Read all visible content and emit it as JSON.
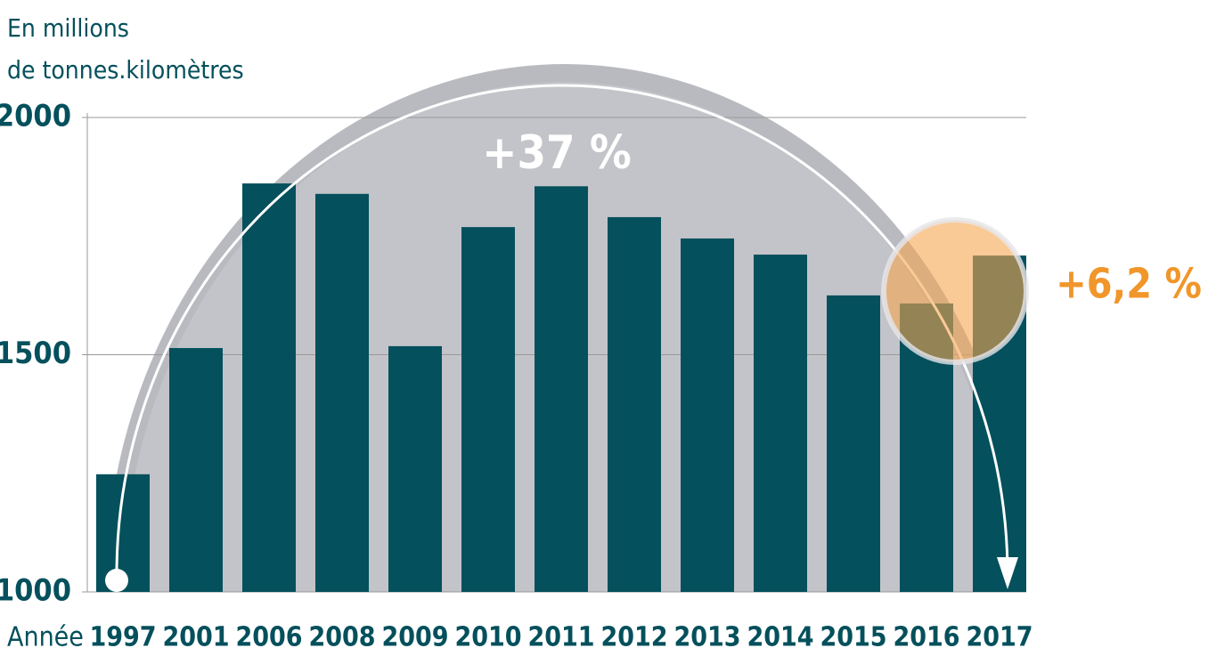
{
  "chart_data": {
    "type": "bar",
    "unit_label": [
      "En millions",
      "de tonnes.kilomètres"
    ],
    "x_label": "Année",
    "categories": [
      "1997",
      "2001",
      "2006",
      "2008",
      "2009",
      "2010",
      "2011",
      "2012",
      "2013",
      "2014",
      "2015",
      "2016",
      "2017"
    ],
    "values": [
      1248,
      1514,
      1861,
      1839,
      1518,
      1769,
      1855,
      1790,
      1745,
      1711,
      1625,
      1608,
      1709
    ],
    "color": "#04505c",
    "ylim": [
      1000,
      2000
    ],
    "yticks": [
      1000,
      1500,
      2000
    ],
    "grid": true,
    "annotations": [
      "+37 %",
      "+6,2 %"
    ]
  }
}
